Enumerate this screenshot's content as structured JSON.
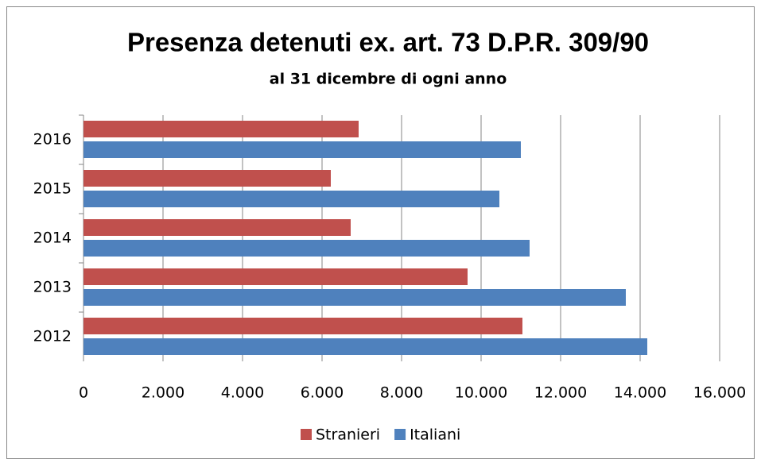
{
  "chart_data": {
    "type": "hbar",
    "title": "Presenza detenuti ex. art. 73 D.P.R. 309/90",
    "subtitle": "al 31 dicembre di ogni anno",
    "categories": [
      "2012",
      "2013",
      "2014",
      "2015",
      "2016"
    ],
    "series": [
      {
        "name": "Stranieri",
        "color": "#c0504d",
        "values": [
          11040,
          9660,
          6720,
          6220,
          6920
        ]
      },
      {
        "name": "Italiani",
        "color": "#4f81bd",
        "values": [
          14180,
          13640,
          11220,
          10460,
          11000
        ]
      }
    ],
    "xlim": [
      0,
      16000
    ],
    "xticks": [
      0,
      {
        "value": 2000,
        "label": "2.000"
      },
      {
        "value": 4000,
        "label": "4.000"
      },
      {
        "value": 6000,
        "label": "6.000"
      },
      {
        "value": 8000,
        "label": "8.000"
      },
      {
        "value": 10000,
        "label": "10.000"
      },
      {
        "value": 12000,
        "label": "12.000"
      },
      {
        "value": 14000,
        "label": "14.000"
      },
      {
        "value": 16000,
        "label": "16.000"
      }
    ],
    "grid": true,
    "legend": "bottom"
  }
}
